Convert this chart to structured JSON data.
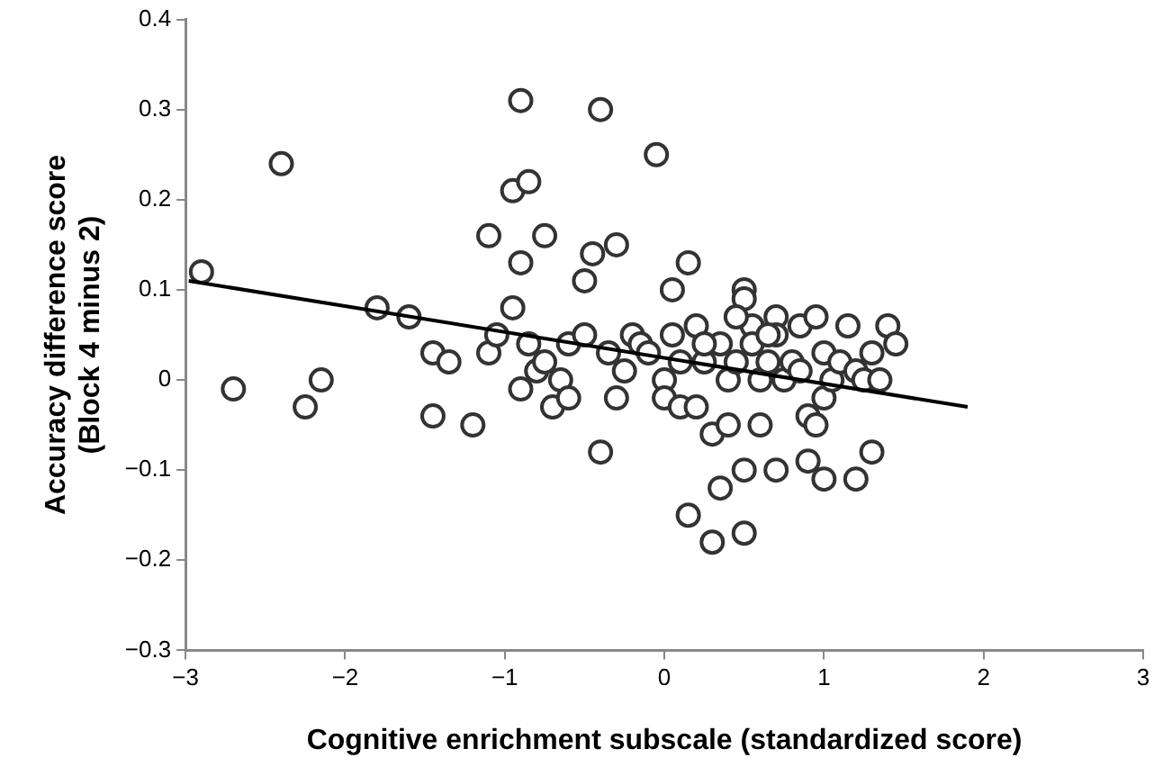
{
  "chart_data": {
    "type": "scatter",
    "xlabel": "Cognitive enrichment subscale (standardized score)",
    "ylabel": "Accuracy difference score\n(Block 4 minus 2)",
    "xlim": [
      -3,
      3
    ],
    "xticks": [
      {
        "value": -3,
        "label": "−3"
      },
      {
        "value": -2,
        "label": "−2"
      },
      {
        "value": -1,
        "label": "−1"
      },
      0,
      1,
      2,
      3
    ],
    "ylim": [
      -0.3,
      0.4
    ],
    "yticks": [
      {
        "value": -0.3,
        "label": "−0.3"
      },
      {
        "value": -0.2,
        "label": "−0.2"
      },
      {
        "value": -0.1,
        "label": "−0.1"
      },
      0,
      0.1,
      0.2,
      0.3,
      0.4
    ],
    "grid": false,
    "legend": false,
    "marker": "circle",
    "series": [
      {
        "color": "#333333",
        "x": [
          -2.9,
          -2.7,
          -2.4,
          -2.25,
          -2.15,
          -1.8,
          -1.6,
          -1.45,
          -1.45,
          -1.35,
          -1.2,
          -1.1,
          -1.1,
          -1.05,
          -0.95,
          -0.95,
          -0.9,
          -0.9,
          -0.85,
          -0.9,
          -0.85,
          -0.8,
          -0.75,
          -0.75,
          -0.7,
          -0.65,
          -0.6,
          -0.6,
          -0.5,
          -0.5,
          -0.45,
          -0.4,
          -0.4,
          -0.3,
          -0.35,
          -0.3,
          -0.25,
          -0.2,
          -0.15,
          -0.1,
          -0.05,
          0,
          0,
          0.05,
          0.05,
          0.1,
          0.1,
          0.15,
          0.15,
          0.2,
          0.2,
          0.25,
          0.3,
          0.3,
          0.35,
          0.35,
          0.4,
          0.4,
          0.45,
          0.5,
          0.5,
          0.5,
          0.5,
          0.55,
          0.6,
          0.6,
          0.65,
          0.7,
          0.7,
          0.7,
          0.75,
          0.8,
          0.85,
          0.9,
          0.9,
          0.95,
          1,
          1,
          1,
          1.05,
          1.1,
          1.15,
          1.2,
          1.2,
          1.25,
          1.3,
          1.3,
          1.35,
          1.4,
          1.45,
          0.55,
          0.65,
          0.85,
          0.95,
          0.45,
          0.25
        ],
        "values": [
          0.12,
          -0.01,
          0.24,
          -0.03,
          0,
          0.08,
          0.07,
          -0.04,
          0.03,
          0.02,
          -0.05,
          0.03,
          0.16,
          0.05,
          0.08,
          0.21,
          0.31,
          0.13,
          0.22,
          -0.01,
          0.04,
          0.01,
          0.02,
          0.16,
          -0.03,
          0,
          -0.02,
          0.04,
          0.05,
          0.11,
          0.14,
          0.3,
          -0.08,
          0.15,
          0.03,
          -0.02,
          0.01,
          0.05,
          0.04,
          0.03,
          0.25,
          0,
          -0.02,
          0.05,
          0.1,
          0.02,
          -0.03,
          0.13,
          -0.15,
          0.06,
          -0.03,
          0.02,
          -0.18,
          -0.06,
          -0.12,
          0.04,
          0,
          -0.05,
          0.02,
          0.1,
          0.09,
          -0.1,
          -0.17,
          0.06,
          0,
          -0.05,
          0.02,
          0.07,
          0.05,
          -0.1,
          0,
          0.02,
          0.06,
          -0.09,
          -0.04,
          0.07,
          0.03,
          -0.02,
          -0.11,
          0,
          0.02,
          0.06,
          -0.11,
          0.01,
          0,
          -0.08,
          0.03,
          0,
          0.06,
          0.04,
          0.04,
          0.05,
          0.01,
          -0.05,
          0.07,
          0.04
        ]
      },
      {
        "type": "line",
        "color": "#000000",
        "marker": "none",
        "line_style": "solid",
        "x": [
          -2.98,
          1.9
        ],
        "values": [
          0.11,
          -0.03
        ]
      }
    ]
  }
}
